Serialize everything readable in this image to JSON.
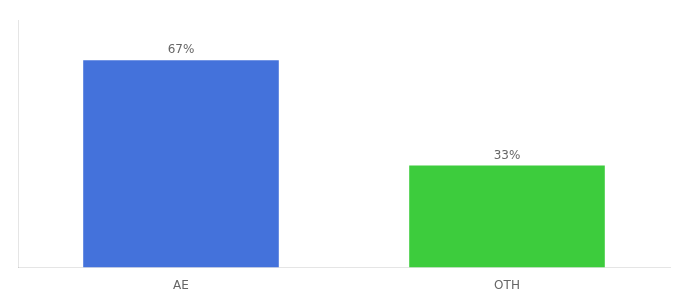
{
  "chart_data": {
    "type": "bar",
    "categories": [
      "AE",
      "OTH"
    ],
    "values": [
      67,
      33
    ],
    "value_labels": [
      "67%",
      "33%"
    ],
    "colors": [
      "#4472db",
      "#3dcc3d"
    ],
    "ylim": [
      0,
      80
    ],
    "data_labels": true,
    "tick_labels": "x",
    "grid": false
  }
}
